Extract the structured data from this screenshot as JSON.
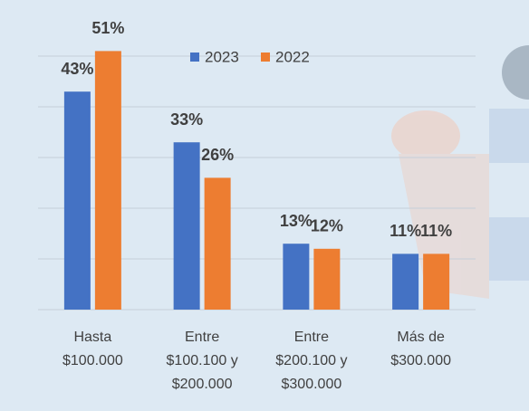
{
  "chart_data": {
    "type": "bar",
    "categories": [
      [
        "Hasta",
        "$100.000"
      ],
      [
        "Entre",
        "$100.100 y",
        "$200.000"
      ],
      [
        "Entre",
        "$200.100 y",
        "$300.000"
      ],
      [
        "Más de",
        "$300.000"
      ]
    ],
    "series": [
      {
        "name": "2023",
        "color": "#4472c4",
        "values": [
          43,
          33,
          13,
          11
        ],
        "value_labels": [
          "43%",
          "33%",
          "13%",
          "11%"
        ]
      },
      {
        "name": "2022",
        "color": "#ed7d31",
        "values": [
          51,
          26,
          12,
          11
        ],
        "value_labels": [
          "51%",
          "26%",
          "12%",
          "11%"
        ]
      }
    ],
    "ylim": [
      0,
      55
    ],
    "yticks": [
      0,
      10,
      20,
      30,
      40,
      50
    ],
    "grid": true,
    "legend": "top"
  }
}
